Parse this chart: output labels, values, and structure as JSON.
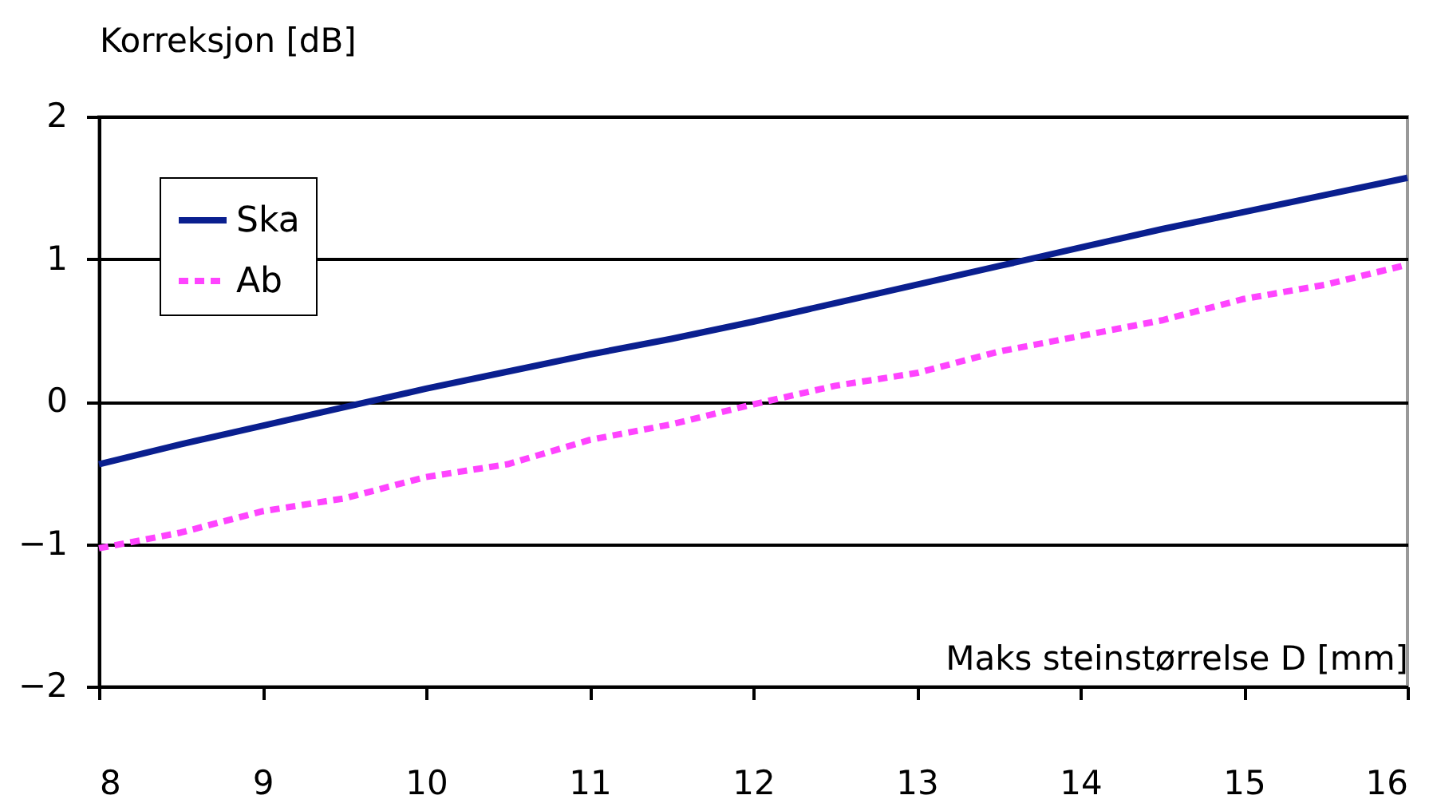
{
  "chart_data": {
    "type": "line",
    "xlabel": "Maks steinstørrelse D [mm]",
    "ylabel": "Korreksjon [dB]",
    "x": [
      8,
      8.5,
      9,
      9.5,
      10,
      10.5,
      11,
      11.5,
      12,
      12.5,
      13,
      13.5,
      14,
      14.5,
      15,
      15.5,
      16
    ],
    "series": [
      {
        "name": "Ska",
        "color": "#0a1f8f",
        "line_style": "solid",
        "values": [
          -0.44,
          -0.3,
          -0.17,
          -0.04,
          0.09,
          0.21,
          0.33,
          0.44,
          0.56,
          0.69,
          0.82,
          0.95,
          1.08,
          1.21,
          1.33,
          1.45,
          1.57
        ]
      },
      {
        "name": "Ab",
        "color": "#ff44ff",
        "line_style": "dashed",
        "values": [
          -1.03,
          -0.92,
          -0.77,
          -0.68,
          -0.53,
          -0.44,
          -0.27,
          -0.16,
          -0.02,
          0.11,
          0.2,
          0.35,
          0.46,
          0.57,
          0.72,
          0.82,
          0.96
        ]
      }
    ],
    "xlim": [
      8,
      16
    ],
    "xticks": [
      8,
      9,
      10,
      11,
      12,
      13,
      14,
      15,
      16
    ],
    "ylim": [
      -2,
      2
    ],
    "yticks": [
      -2,
      -1,
      0,
      1,
      2
    ],
    "grid": "y",
    "legend": "top left"
  }
}
